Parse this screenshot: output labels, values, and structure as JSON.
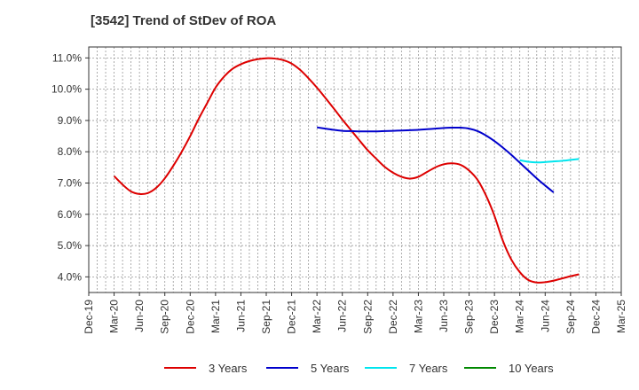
{
  "chart_data": {
    "type": "line",
    "title": "[3542]  Trend of StDev of ROA",
    "xlabel": "",
    "ylabel": "",
    "x_ticks": [
      "Dec-19",
      "Mar-20",
      "Jun-20",
      "Sep-20",
      "Dec-20",
      "Mar-21",
      "Jun-21",
      "Sep-21",
      "Dec-21",
      "Mar-22",
      "Jun-22",
      "Sep-22",
      "Dec-22",
      "Mar-23",
      "Jun-23",
      "Sep-23",
      "Dec-23",
      "Mar-24",
      "Jun-24",
      "Sep-24",
      "Dec-24",
      "Mar-25"
    ],
    "y_ticks": [
      "4.0%",
      "5.0%",
      "6.0%",
      "7.0%",
      "8.0%",
      "9.0%",
      "10.0%",
      "11.0%"
    ],
    "ylim": [
      3.5,
      11.35
    ],
    "grid": true,
    "legend_position": "bottom",
    "series": [
      {
        "name": "3 Years",
        "color": "#dd0000",
        "points": [
          [
            "Mar-20",
            7.22
          ],
          [
            "Apr-20",
            6.95
          ],
          [
            "May-20",
            6.73
          ],
          [
            "Jun-20",
            6.65
          ],
          [
            "Jul-20",
            6.68
          ],
          [
            "Aug-20",
            6.85
          ],
          [
            "Sep-20",
            7.15
          ],
          [
            "Oct-20",
            7.55
          ],
          [
            "Nov-20",
            8.0
          ],
          [
            "Dec-20",
            8.5
          ],
          [
            "Jan-21",
            9.05
          ],
          [
            "Feb-21",
            9.55
          ],
          [
            "Mar-21",
            10.05
          ],
          [
            "Apr-21",
            10.4
          ],
          [
            "May-21",
            10.65
          ],
          [
            "Jun-21",
            10.8
          ],
          [
            "Jul-21",
            10.9
          ],
          [
            "Aug-21",
            10.96
          ],
          [
            "Sep-21",
            10.99
          ],
          [
            "Oct-21",
            10.98
          ],
          [
            "Nov-21",
            10.93
          ],
          [
            "Dec-21",
            10.82
          ],
          [
            "Jan-22",
            10.62
          ],
          [
            "Feb-22",
            10.35
          ],
          [
            "Mar-22",
            10.05
          ],
          [
            "Apr-22",
            9.72
          ],
          [
            "May-22",
            9.38
          ],
          [
            "Jun-22",
            9.03
          ],
          [
            "Jul-22",
            8.7
          ],
          [
            "Aug-22",
            8.37
          ],
          [
            "Sep-22",
            8.05
          ],
          [
            "Oct-22",
            7.78
          ],
          [
            "Nov-22",
            7.52
          ],
          [
            "Dec-22",
            7.33
          ],
          [
            "Jan-23",
            7.2
          ],
          [
            "Feb-23",
            7.14
          ],
          [
            "Mar-23",
            7.2
          ],
          [
            "Apr-23",
            7.35
          ],
          [
            "May-23",
            7.5
          ],
          [
            "Jun-23",
            7.6
          ],
          [
            "Jul-23",
            7.63
          ],
          [
            "Aug-23",
            7.58
          ],
          [
            "Sep-23",
            7.4
          ],
          [
            "Oct-23",
            7.1
          ],
          [
            "Nov-23",
            6.6
          ],
          [
            "Dec-23",
            5.95
          ],
          [
            "Jan-24",
            5.15
          ],
          [
            "Feb-24",
            4.55
          ],
          [
            "Mar-24",
            4.15
          ],
          [
            "Apr-24",
            3.9
          ],
          [
            "May-24",
            3.82
          ],
          [
            "Jun-24",
            3.83
          ],
          [
            "Jul-24",
            3.88
          ],
          [
            "Aug-24",
            3.95
          ],
          [
            "Sep-24",
            4.02
          ],
          [
            "Oct-24",
            4.08
          ]
        ]
      },
      {
        "name": "5 Years",
        "color": "#0000cc",
        "points": [
          [
            "Mar-22",
            8.78
          ],
          [
            "Apr-22",
            8.74
          ],
          [
            "May-22",
            8.7
          ],
          [
            "Jun-22",
            8.67
          ],
          [
            "Jul-22",
            8.66
          ],
          [
            "Aug-22",
            8.65
          ],
          [
            "Sep-22",
            8.65
          ],
          [
            "Oct-22",
            8.65
          ],
          [
            "Nov-22",
            8.66
          ],
          [
            "Dec-22",
            8.67
          ],
          [
            "Jan-23",
            8.68
          ],
          [
            "Feb-23",
            8.69
          ],
          [
            "Mar-23",
            8.7
          ],
          [
            "Apr-23",
            8.72
          ],
          [
            "May-23",
            8.74
          ],
          [
            "Jun-23",
            8.76
          ],
          [
            "Jul-23",
            8.77
          ],
          [
            "Aug-23",
            8.77
          ],
          [
            "Sep-23",
            8.74
          ],
          [
            "Oct-23",
            8.66
          ],
          [
            "Nov-23",
            8.52
          ],
          [
            "Dec-23",
            8.34
          ],
          [
            "Jan-24",
            8.13
          ],
          [
            "Feb-24",
            7.9
          ],
          [
            "Mar-24",
            7.65
          ],
          [
            "Apr-24",
            7.4
          ],
          [
            "May-24",
            7.15
          ],
          [
            "Jun-24",
            6.92
          ],
          [
            "Jul-24",
            6.7
          ]
        ]
      },
      {
        "name": "7 Years",
        "color": "#00e5ee",
        "points": [
          [
            "Mar-24",
            7.73
          ],
          [
            "Apr-24",
            7.68
          ],
          [
            "May-24",
            7.66
          ],
          [
            "Jun-24",
            7.67
          ],
          [
            "Jul-24",
            7.69
          ],
          [
            "Aug-24",
            7.71
          ],
          [
            "Sep-24",
            7.74
          ],
          [
            "Oct-24",
            7.77
          ]
        ]
      },
      {
        "name": "10 Years",
        "color": "#008800",
        "points": []
      }
    ]
  }
}
